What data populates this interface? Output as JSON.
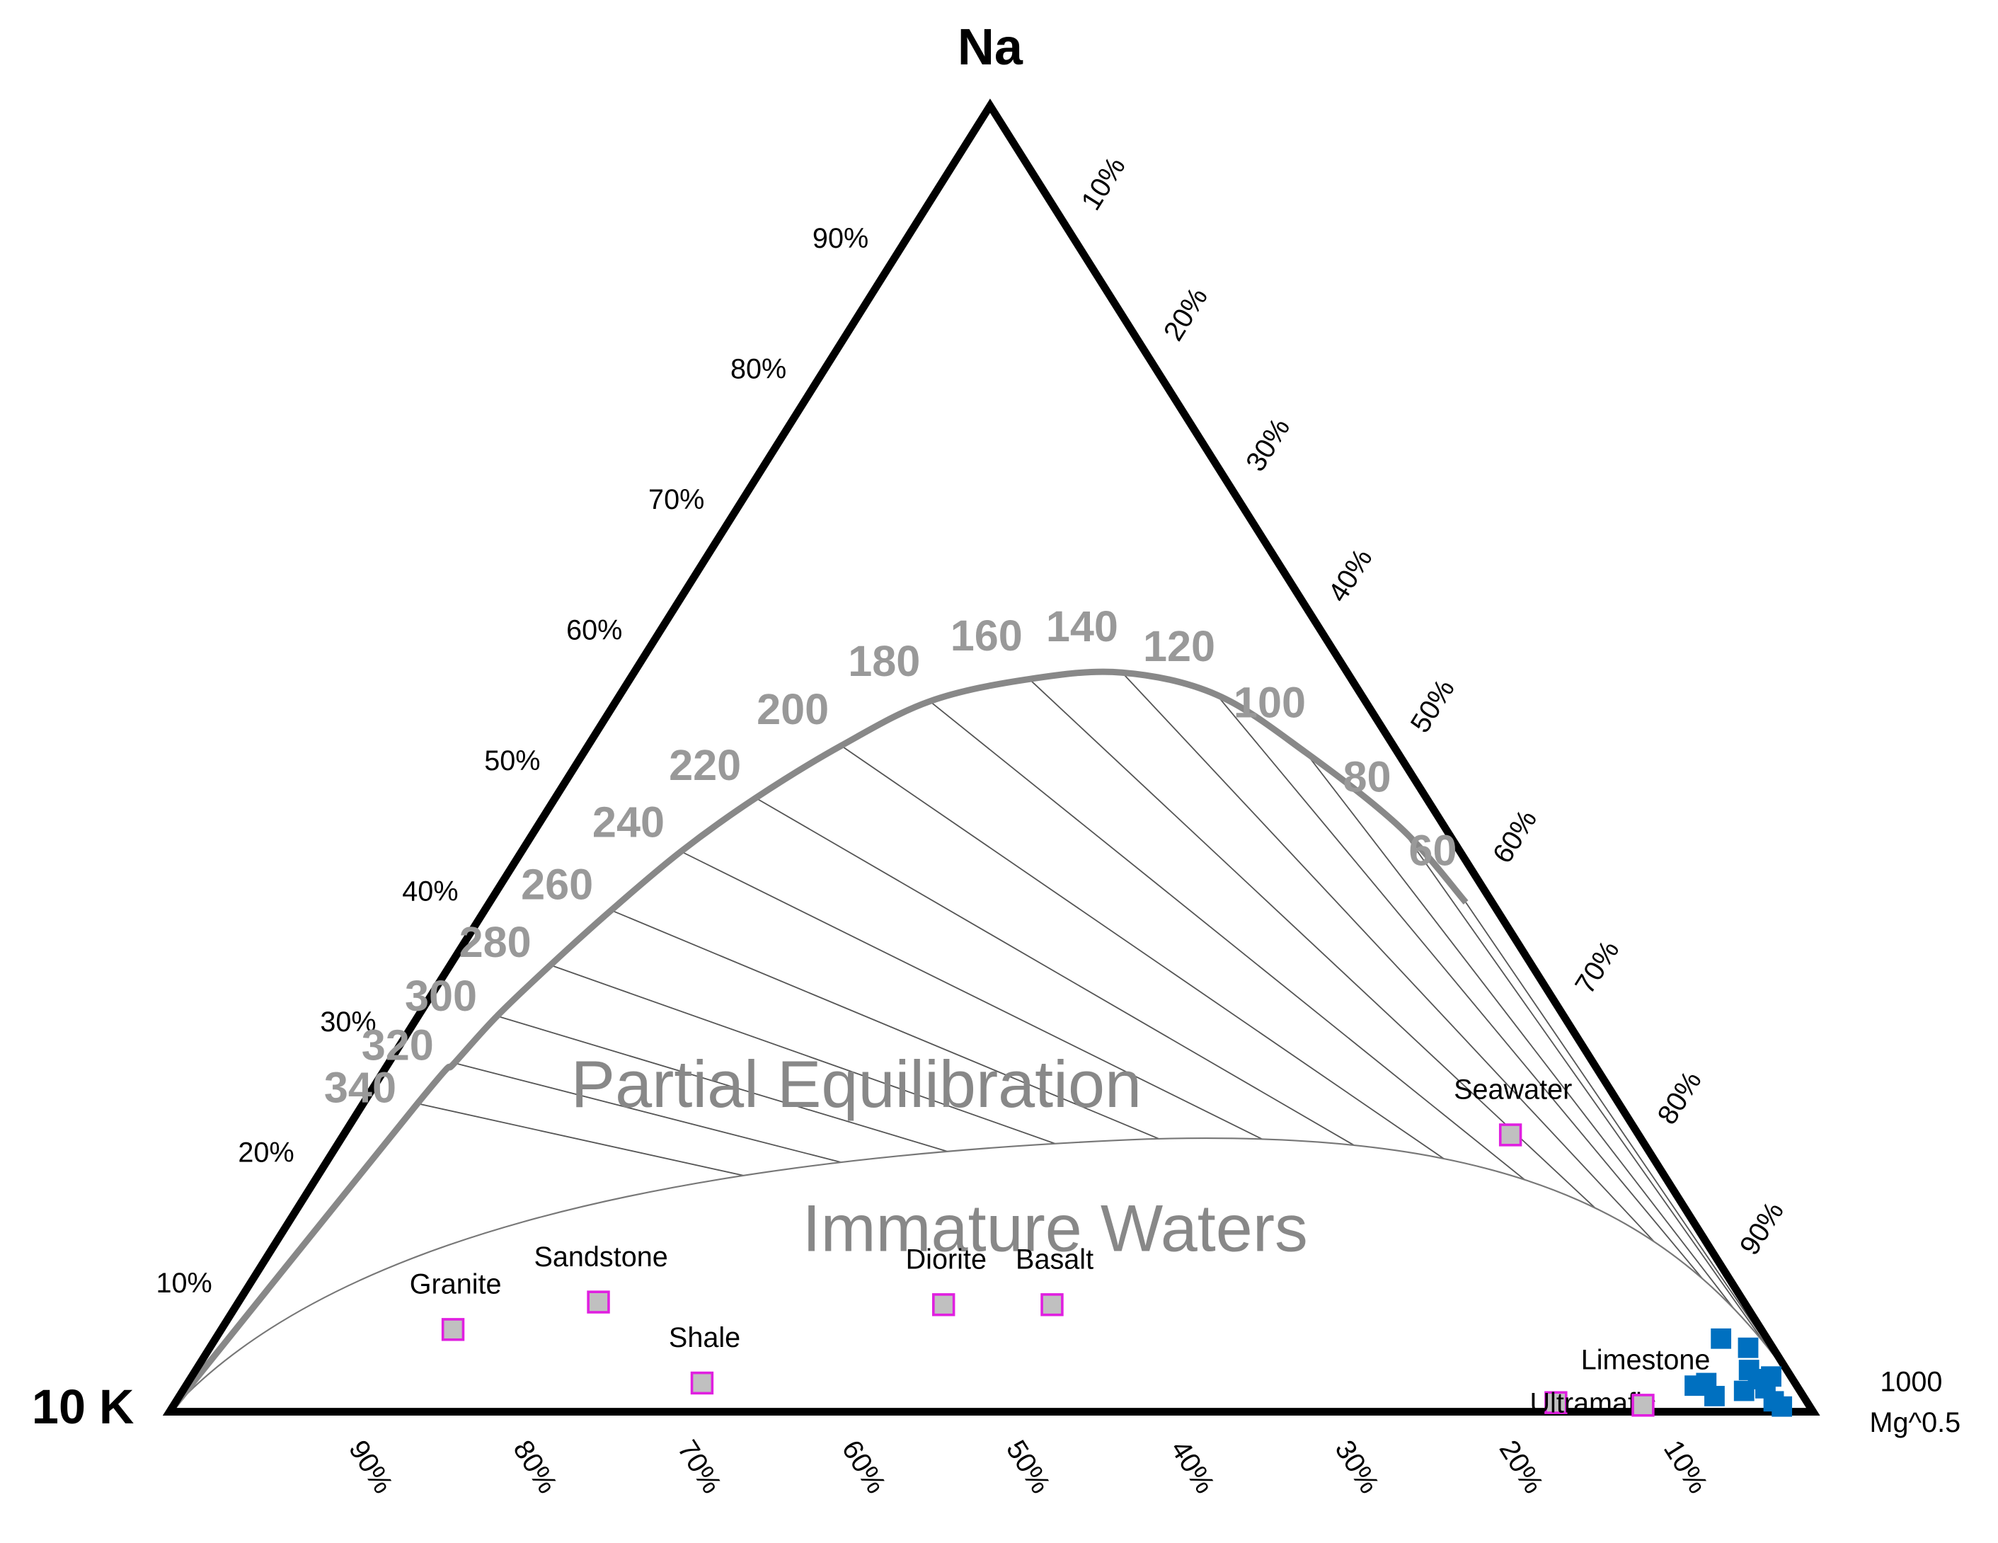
{
  "chart_data": {
    "type": "ternary",
    "top_label": "Na",
    "left_label": "10 K",
    "right_label": [
      "1000",
      "Mg^0.5"
    ],
    "regions": [
      "Partial Equilibration",
      "Immature Waters"
    ],
    "na_ticks": [
      {
        "value": 10,
        "label": "10%"
      },
      {
        "value": 20,
        "label": "20%"
      },
      {
        "value": 30,
        "label": "30%"
      },
      {
        "value": 40,
        "label": "40%"
      },
      {
        "value": 50,
        "label": "50%"
      },
      {
        "value": 60,
        "label": "60%"
      },
      {
        "value": 70,
        "label": "70%"
      },
      {
        "value": 80,
        "label": "80%"
      },
      {
        "value": 90,
        "label": "90%"
      }
    ],
    "mg_ticks": [
      {
        "value": 10,
        "label": "10%"
      },
      {
        "value": 20,
        "label": "20%"
      },
      {
        "value": 30,
        "label": "30%"
      },
      {
        "value": 40,
        "label": "40%"
      },
      {
        "value": 50,
        "label": "50%"
      },
      {
        "value": 60,
        "label": "60%"
      },
      {
        "value": 70,
        "label": "70%"
      },
      {
        "value": 80,
        "label": "80%"
      },
      {
        "value": 90,
        "label": "90%"
      }
    ],
    "k_ticks": [
      {
        "value": 90,
        "label": "90%"
      },
      {
        "value": 80,
        "label": "80%"
      },
      {
        "value": 70,
        "label": "70%"
      },
      {
        "value": 60,
        "label": "60%"
      },
      {
        "value": 50,
        "label": "50%"
      },
      {
        "value": 40,
        "label": "40%"
      },
      {
        "value": 30,
        "label": "30%"
      },
      {
        "value": 20,
        "label": "20%"
      },
      {
        "value": 10,
        "label": "10%"
      }
    ],
    "isotherms": {
      "temperatures": [
        60,
        80,
        100,
        120,
        140,
        160,
        180,
        200,
        220,
        240,
        260,
        280,
        300,
        320,
        340
      ],
      "na": [
        39.0,
        44.7,
        50.5,
        54.9,
        56.6,
        56.1,
        54.4,
        51.0,
        47.0,
        42.9,
        38.4,
        34.2,
        30.3,
        26.7,
        23.6
      ],
      "mg": [
        59.4,
        52.6,
        43.9,
        36.3,
        29.7,
        24.3,
        19.1,
        15.4,
        12.2,
        9.7,
        7.7,
        6.1,
        4.8,
        4.0,
        3.3
      ],
      "k": [
        1.6,
        2.7,
        5.6,
        8.8,
        13.7,
        19.6,
        26.5,
        33.6,
        40.8,
        47.4,
        53.9,
        59.7,
        64.9,
        69.3,
        73.1
      ]
    },
    "reference_samples": {
      "names": [
        "Seawater",
        "Granite",
        "Sandstone",
        "Shale",
        "Diorite",
        "Basalt",
        "Ultramafic",
        "Limestone"
      ],
      "na": [
        21.2,
        6.3,
        8.4,
        2.2,
        8.2,
        8.2,
        0.7,
        0.5
      ],
      "mg": [
        71.0,
        14.1,
        21.9,
        31.3,
        43.0,
        49.6,
        84.0,
        89.4
      ],
      "k": [
        7.8,
        79.6,
        69.7,
        66.5,
        48.8,
        42.2,
        15.3,
        10.1
      ],
      "color": "#c0c0c0",
      "edge_color": "#e020e0"
    },
    "samples": {
      "color": "#0070c0",
      "na": [
        5.6,
        4.9,
        2.2,
        2.0,
        1.2,
        3.2,
        1.8,
        0.8,
        0.4,
        2.5,
        1.6,
        2.7
      ],
      "mg": [
        91.6,
        93.6,
        92.4,
        91.8,
        93.4,
        94.5,
        96.2,
        97.2,
        97.9,
        95.4,
        95.0,
        96.1
      ],
      "k": [
        2.8,
        1.5,
        5.4,
        6.2,
        5.4,
        2.3,
        2.0,
        2.0,
        1.7,
        2.1,
        3.4,
        1.2
      ]
    }
  }
}
